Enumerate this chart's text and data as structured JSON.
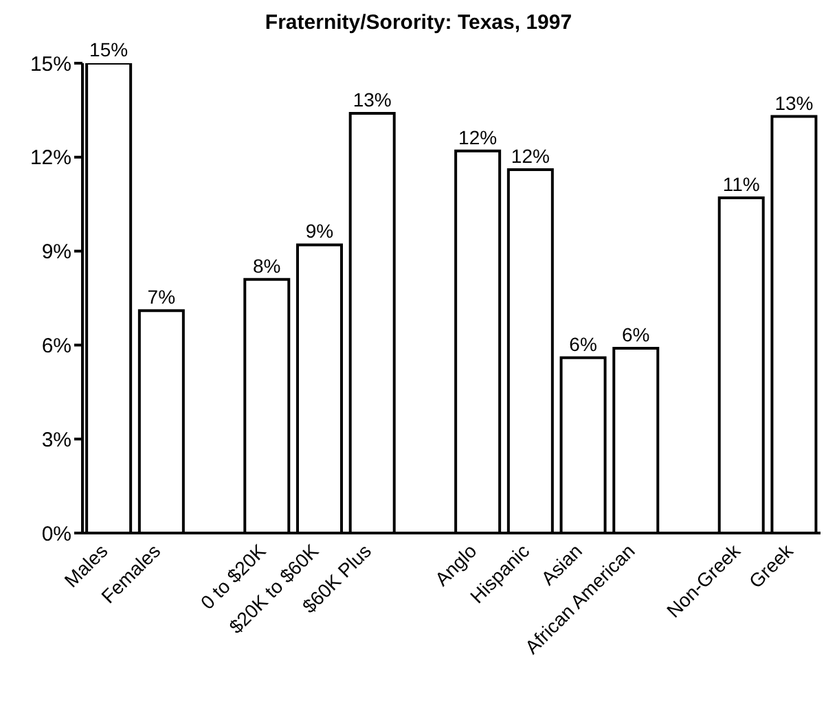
{
  "chart_data": {
    "type": "bar",
    "title": "Fraternity/Sorority: Texas, 1997",
    "categories": [
      "Males",
      "Females",
      null,
      "0 to $20K",
      "$20K to $60K",
      "$60K Plus",
      null,
      "Anglo",
      "Hispanic",
      "Asian",
      "African American",
      null,
      "Non-Greek",
      "Greek"
    ],
    "values": [
      15.0,
      7.1,
      null,
      8.1,
      9.2,
      13.4,
      null,
      12.2,
      11.6,
      5.6,
      5.9,
      null,
      10.7,
      13.3
    ],
    "value_labels": [
      "15%",
      "7%",
      null,
      "8%",
      "9%",
      "13%",
      null,
      "12%",
      "12%",
      "6%",
      "6%",
      null,
      "11%",
      "13%"
    ],
    "color": "#ffffff",
    "ylim": [
      0,
      15
    ],
    "yticks": [
      {
        "value": 0,
        "label": "0%"
      },
      {
        "value": 3,
        "label": "3%"
      },
      {
        "value": 6,
        "label": "6%"
      },
      {
        "value": 9,
        "label": "9%"
      },
      {
        "value": 12,
        "label": "12%"
      },
      {
        "value": 15,
        "label": "15%"
      }
    ],
    "grid": false
  }
}
